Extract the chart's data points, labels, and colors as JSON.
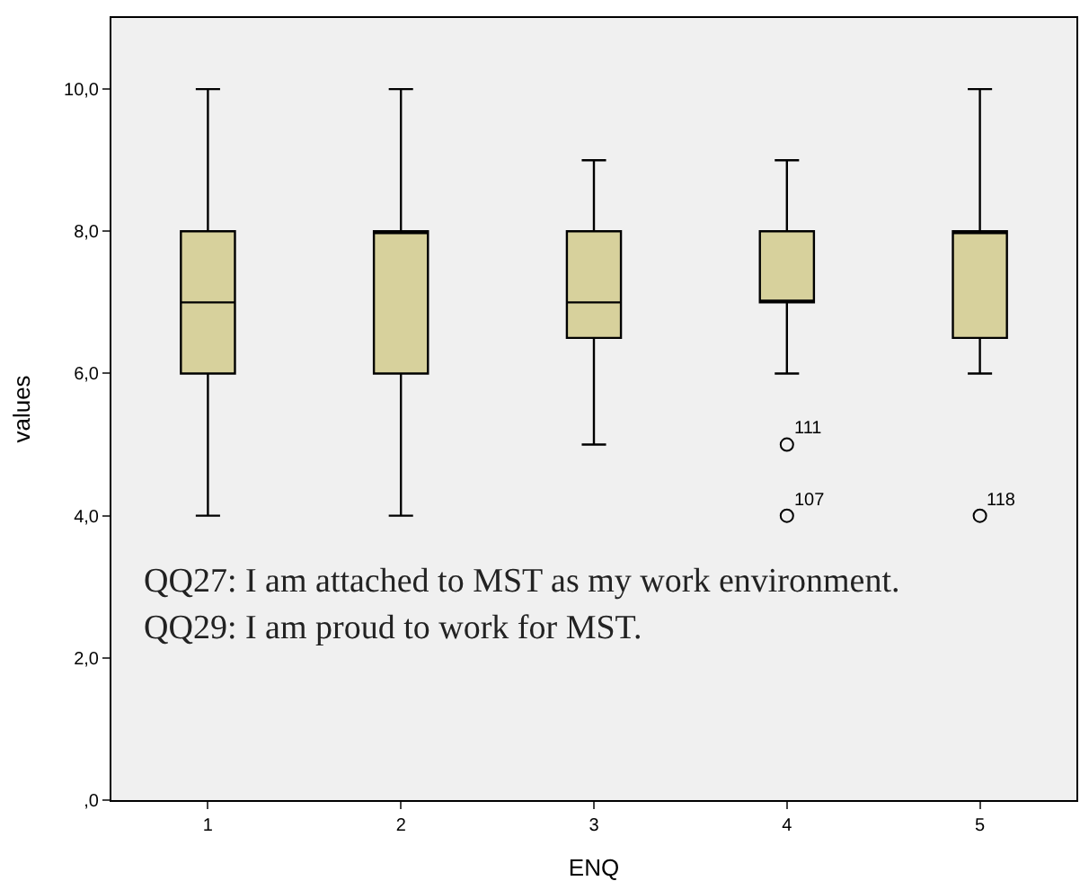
{
  "chart_data": {
    "type": "box",
    "xlabel": "ENQ",
    "ylabel": "values",
    "categories": [
      "1",
      "2",
      "3",
      "4",
      "5"
    ],
    "boxes": [
      {
        "low": 4,
        "q1": 6,
        "median": 7,
        "q3": 8,
        "high": 10
      },
      {
        "low": 4,
        "q1": 6,
        "median": 8,
        "q3": 8,
        "high": 10
      },
      {
        "low": 5,
        "q1": 6.5,
        "median": 7,
        "q3": 8,
        "high": 9
      },
      {
        "low": 6,
        "q1": 7,
        "median": 7,
        "q3": 8,
        "high": 9
      },
      {
        "low": 6,
        "q1": 6.5,
        "median": 8,
        "q3": 8,
        "high": 10
      }
    ],
    "series": [
      {
        "type": "scatter",
        "x": [
          "4",
          "4",
          "5"
        ],
        "values": [
          5,
          4,
          4
        ],
        "color": "#000000",
        "marker": "circle"
      }
    ],
    "color": "#d7d19c",
    "ylim": [
      0,
      11
    ],
    "yticks": [
      {
        "value": 0,
        "label": ",0"
      },
      {
        "value": 2,
        "label": "2,0"
      },
      {
        "value": 4,
        "label": "4,0"
      },
      {
        "value": 6,
        "label": "6,0"
      },
      {
        "value": 8,
        "label": "8,0"
      },
      {
        "value": 10,
        "label": "10,0"
      }
    ],
    "grid": false,
    "annotations": [
      {
        "text": "111",
        "x": "4",
        "y": 5
      },
      {
        "text": "107",
        "x": "4",
        "y": 4
      },
      {
        "text": "118",
        "x": "5",
        "y": 4
      },
      "QQ27: I am attached to MST as my work environment.",
      "QQ29: I am proud to work for MST."
    ]
  }
}
